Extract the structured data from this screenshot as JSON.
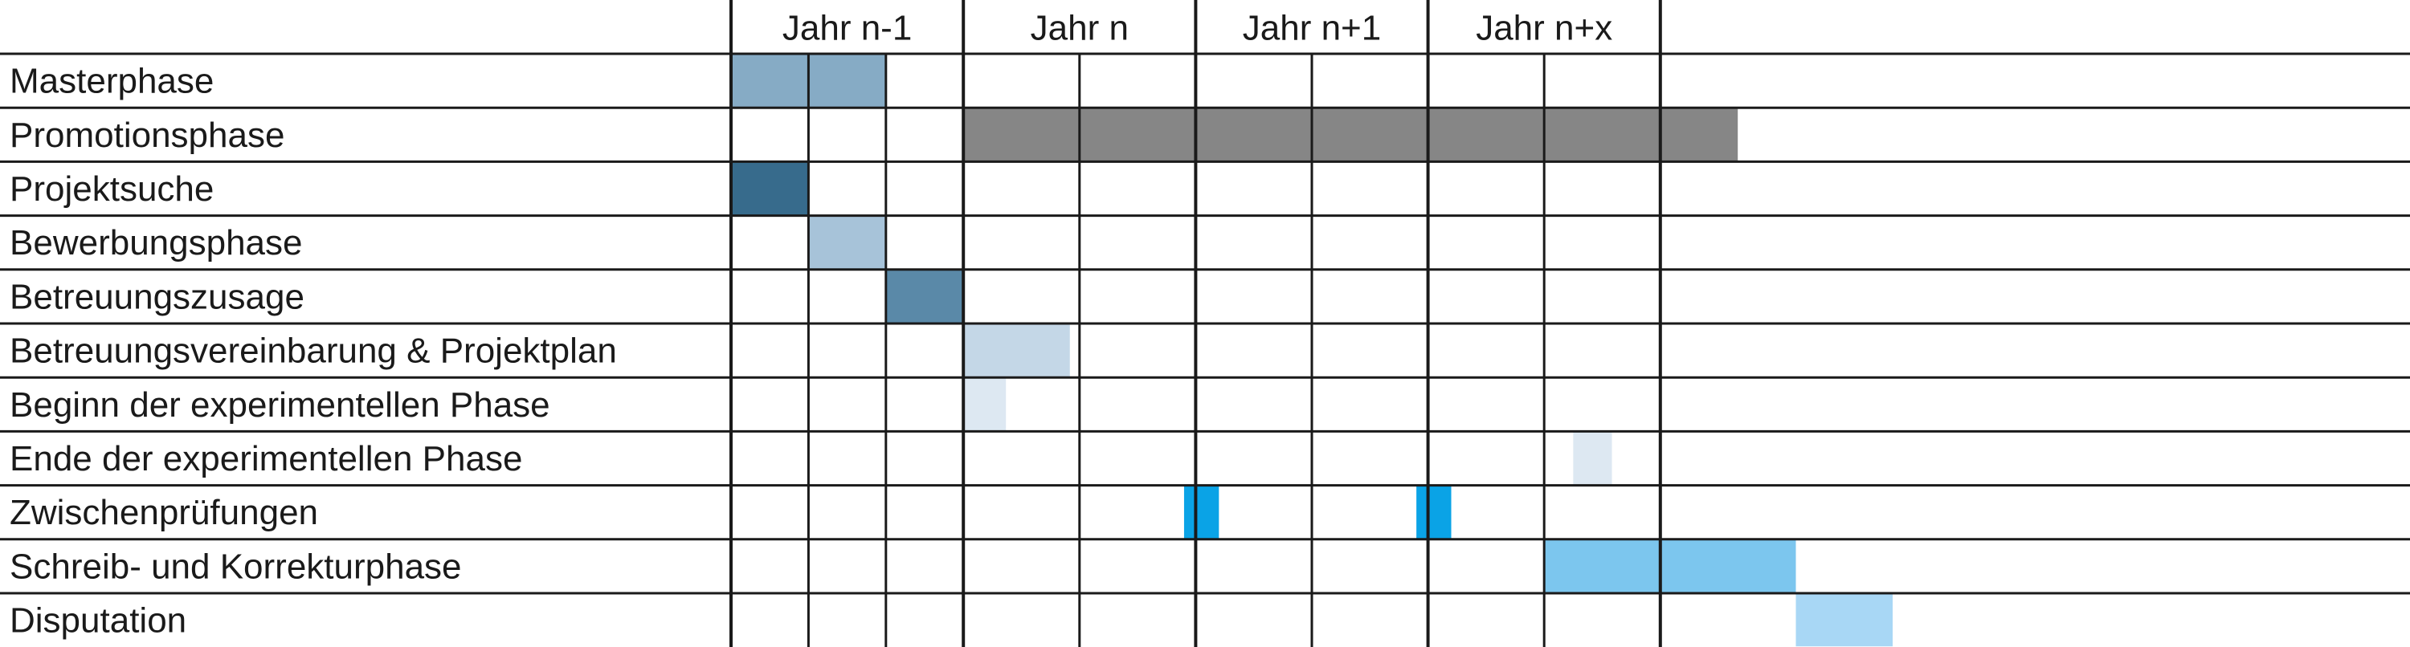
{
  "chart_data": {
    "type": "gantt",
    "columns": [
      "Jahr n-1",
      "Jahr n",
      "Jahr n+1",
      "Jahr n+x"
    ],
    "column_months": [
      12,
      12,
      12,
      12
    ],
    "rows": [
      "Masterphase",
      "Promotionsphase",
      "Projektsuche",
      "Bewerbungsphase",
      "Betreuungszusage",
      "Betreuungsvereinbarung & Projektplan",
      "Beginn der experimentellen Phase",
      "Ende der experimentellen Phase",
      "Zwischenprüfungen",
      "Schreib- und Korrekturphase",
      "Disputation"
    ],
    "tasks": [
      {
        "row": 0,
        "start": 0,
        "end": 8,
        "color": "#86abc5"
      },
      {
        "row": 1,
        "start": 12,
        "end": 52,
        "color": "#868686"
      },
      {
        "row": 2,
        "start": 0,
        "end": 4,
        "color": "#376b8c"
      },
      {
        "row": 3,
        "start": 4,
        "end": 8,
        "color": "#a7c3d9"
      },
      {
        "row": 4,
        "start": 8,
        "end": 12,
        "color": "#5a89a8"
      },
      {
        "row": 5,
        "start": 12,
        "end": 17.5,
        "color": "#c4d7e7"
      },
      {
        "row": 6,
        "start": 12,
        "end": 14.2,
        "color": "#dde8f2"
      },
      {
        "row": 7,
        "start": 43.5,
        "end": 45.5,
        "color": "#dde8f2"
      },
      {
        "row": 8,
        "start": 23.4,
        "end": 25.2,
        "color": "#0aa3e6"
      },
      {
        "row": 8,
        "start": 35.4,
        "end": 37.2,
        "color": "#0aa3e6"
      },
      {
        "row": 9,
        "start": 42,
        "end": 55,
        "color": "#7cc6ee"
      },
      {
        "row": 10,
        "start": 55,
        "end": 60,
        "color": "#a8d7f5"
      }
    ],
    "grid": true
  }
}
